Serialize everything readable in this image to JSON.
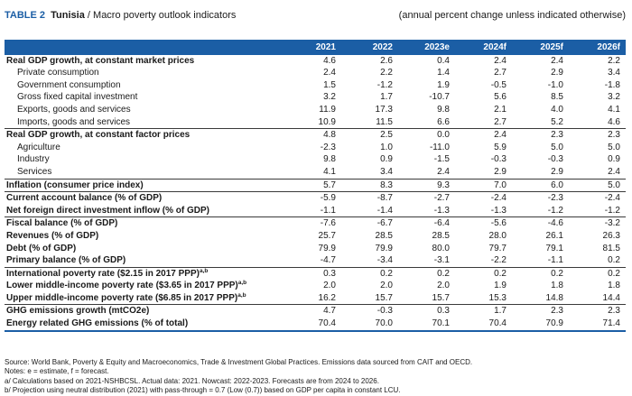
{
  "title": {
    "table_label": "TABLE 2",
    "country": "Tunisia",
    "separator": " / ",
    "subtitle": "Macro poverty outlook indicators",
    "note": "(annual percent change unless indicated otherwise)"
  },
  "columns": [
    "2021",
    "2022",
    "2023e",
    "2024f",
    "2025f",
    "2026f"
  ],
  "rows": [
    {
      "label": "Real GDP growth, at constant market prices",
      "style": "bold",
      "sep": false,
      "values": [
        "4.6",
        "2.6",
        "0.4",
        "2.4",
        "2.4",
        "2.2"
      ]
    },
    {
      "label": "Private consumption",
      "style": "sub",
      "sep": false,
      "values": [
        "2.4",
        "2.2",
        "1.4",
        "2.7",
        "2.9",
        "3.4"
      ]
    },
    {
      "label": "Government consumption",
      "style": "sub",
      "sep": false,
      "values": [
        "1.5",
        "-1.2",
        "1.9",
        "-0.5",
        "-1.0",
        "-1.8"
      ]
    },
    {
      "label": "Gross fixed capital investment",
      "style": "sub",
      "sep": false,
      "values": [
        "3.2",
        "1.7",
        "-10.7",
        "5.6",
        "8.5",
        "3.2"
      ]
    },
    {
      "label": "Exports, goods and services",
      "style": "sub",
      "sep": false,
      "values": [
        "11.9",
        "17.3",
        "9.8",
        "2.1",
        "4.0",
        "4.1"
      ]
    },
    {
      "label": "Imports, goods and services",
      "style": "sub",
      "sep": false,
      "values": [
        "10.9",
        "11.5",
        "6.6",
        "2.7",
        "5.2",
        "4.6"
      ]
    },
    {
      "label": "Real GDP growth, at constant factor prices",
      "style": "bold",
      "sep": true,
      "values": [
        "4.8",
        "2.5",
        "0.0",
        "2.4",
        "2.3",
        "2.3"
      ]
    },
    {
      "label": "Agriculture",
      "style": "sub",
      "sep": false,
      "values": [
        "-2.3",
        "1.0",
        "-11.0",
        "5.9",
        "5.0",
        "5.0"
      ]
    },
    {
      "label": "Industry",
      "style": "sub",
      "sep": false,
      "values": [
        "9.8",
        "0.9",
        "-1.5",
        "-0.3",
        "-0.3",
        "0.9"
      ]
    },
    {
      "label": "Services",
      "style": "sub",
      "sep": false,
      "values": [
        "4.1",
        "3.4",
        "2.4",
        "2.9",
        "2.9",
        "2.4"
      ]
    },
    {
      "label": "Inflation (consumer price index)",
      "style": "bold",
      "sep": true,
      "values": [
        "5.7",
        "8.3",
        "9.3",
        "7.0",
        "6.0",
        "5.0"
      ]
    },
    {
      "label": "Current account balance (% of GDP)",
      "style": "bold",
      "sep": true,
      "values": [
        "-5.9",
        "-8.7",
        "-2.7",
        "-2.4",
        "-2.3",
        "-2.4"
      ]
    },
    {
      "label": "Net foreign direct investment inflow (% of GDP)",
      "style": "bold",
      "sep": false,
      "values": [
        "-1.1",
        "-1.4",
        "-1.3",
        "-1.3",
        "-1.2",
        "-1.2"
      ]
    },
    {
      "label": "Fiscal balance (% of GDP)",
      "style": "bold",
      "sep": true,
      "values": [
        "-7.6",
        "-6.7",
        "-6.4",
        "-5.6",
        "-4.6",
        "-3.2"
      ]
    },
    {
      "label": "Revenues (% of GDP)",
      "style": "bold",
      "sep": false,
      "values": [
        "25.7",
        "28.5",
        "28.5",
        "28.0",
        "26.1",
        "26.3"
      ]
    },
    {
      "label": "Debt (% of GDP)",
      "style": "bold",
      "sep": false,
      "values": [
        "79.9",
        "79.9",
        "80.0",
        "79.7",
        "79.1",
        "81.5"
      ]
    },
    {
      "label": "Primary balance (% of GDP)",
      "style": "bold",
      "sep": false,
      "values": [
        "-4.7",
        "-3.4",
        "-3.1",
        "-2.2",
        "-1.1",
        "0.2"
      ]
    },
    {
      "label": "International poverty rate ($2.15 in 2017 PPP)",
      "sup": "a,b",
      "style": "bold",
      "sep": true,
      "values": [
        "0.3",
        "0.2",
        "0.2",
        "0.2",
        "0.2",
        "0.2"
      ]
    },
    {
      "label": "Lower middle-income poverty rate ($3.65 in 2017 PPP)",
      "sup": "a,b",
      "style": "bold",
      "sep": false,
      "values": [
        "2.0",
        "2.0",
        "2.0",
        "1.9",
        "1.8",
        "1.8"
      ]
    },
    {
      "label": "Upper middle-income poverty rate ($6.85 in 2017 PPP)",
      "sup": "a,b",
      "style": "bold",
      "sep": false,
      "values": [
        "16.2",
        "15.7",
        "15.7",
        "15.3",
        "14.8",
        "14.4"
      ]
    },
    {
      "label": "GHG emissions growth (mtCO2e)",
      "style": "bold",
      "sep": true,
      "values": [
        "4.7",
        "-0.3",
        "0.3",
        "1.7",
        "2.3",
        "2.3"
      ]
    },
    {
      "label": "Energy related GHG emissions (% of total)",
      "style": "bold",
      "sep": false,
      "values": [
        "70.4",
        "70.0",
        "70.1",
        "70.4",
        "70.9",
        "71.4"
      ]
    }
  ],
  "footer": [
    "Source: World Bank, Poverty & Equity and Macroeconomics, Trade & Investment Global Practices. Emissions data sourced from CAIT and OECD.",
    "Notes: e = estimate, f = forecast.",
    "a/ Calculations based on 2021-NSHBCSL. Actual data: 2021. Nowcast: 2022-2023. Forecasts are from 2024 to 2026.",
    "b/ Projection using neutral distribution (2021) with pass-through = 0.7 (Low (0.7)) based on GDP per capita in constant LCU."
  ]
}
